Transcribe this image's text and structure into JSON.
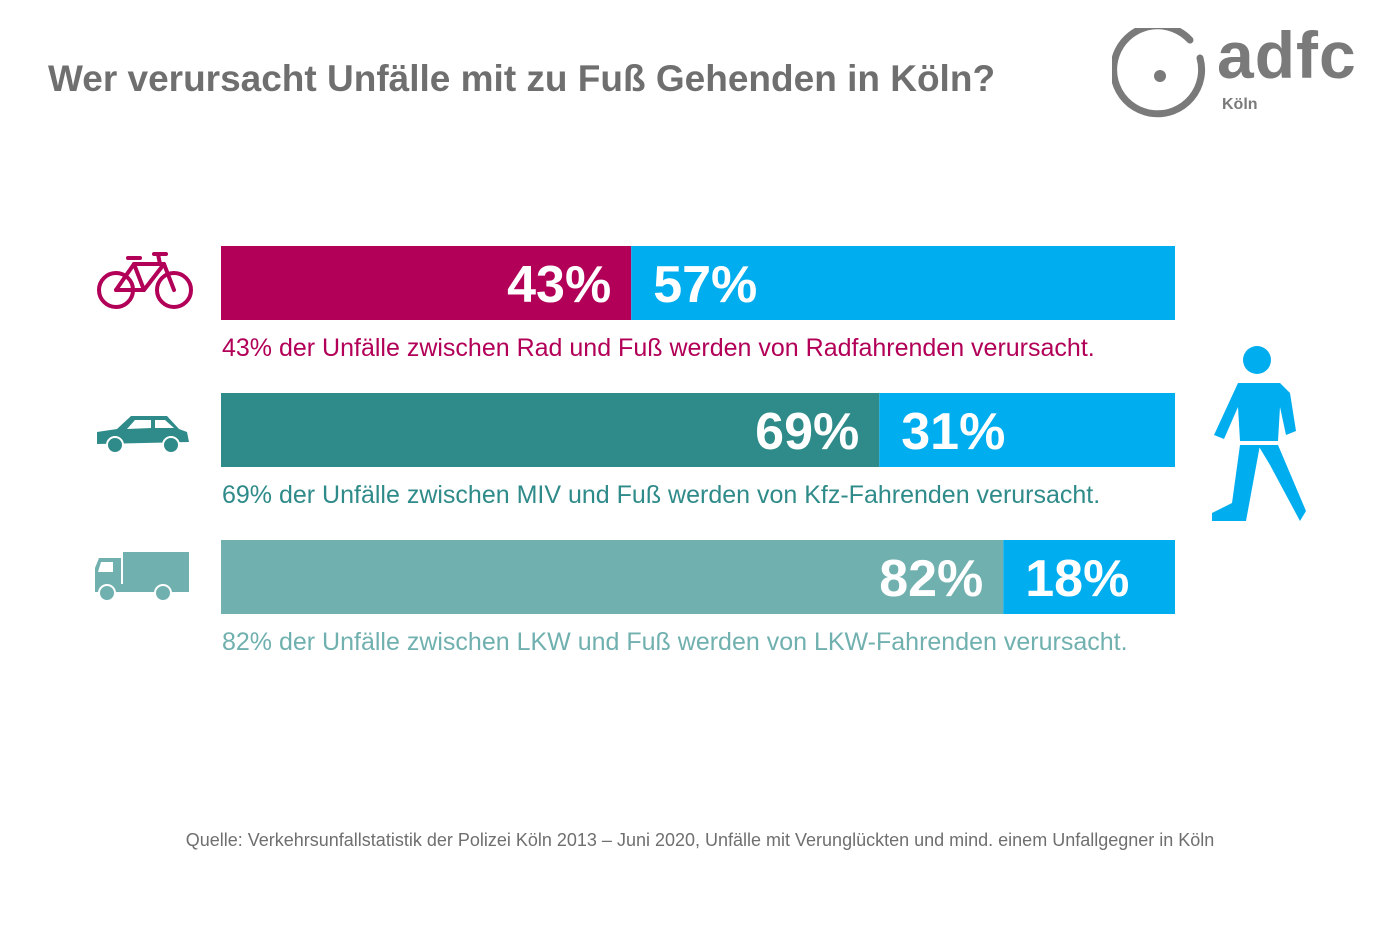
{
  "title": "Wer verursacht Unfälle mit zu Fuß Gehenden in Köln?",
  "logo": {
    "word": "adfc",
    "sub": "Köln"
  },
  "colors": {
    "pedestrian": "#00adef",
    "bicycle": "#b20058",
    "car": "#2f8b8a",
    "truck": "#70b0af",
    "text_gray": "#6f6f6f"
  },
  "chart_data": {
    "type": "bar",
    "orientation": "horizontal",
    "stacked": true,
    "categories": [
      "Rad",
      "MIV",
      "LKW"
    ],
    "series": [
      {
        "values": [
          43,
          69,
          82
        ]
      },
      {
        "values": [
          57,
          31,
          18
        ]
      }
    ],
    "value_labels": [
      [
        "43%",
        "57%"
      ],
      [
        "69%",
        "31%"
      ],
      [
        "82%",
        "18%"
      ]
    ],
    "captions": [
      "43% der Unfälle zwischen Rad und Fuß werden von Radfahrenden verursacht.",
      "69% der Unfälle zwischen MIV und Fuß werden von Kfz-Fahrenden verursacht.",
      "82% der Unfälle zwischen LKW und Fuß werden von LKW-Fahrenden verursacht."
    ],
    "icons": [
      "bicycle-icon",
      "car-icon",
      "truck-icon"
    ],
    "legend_icon": "pedestrian-icon",
    "xlim": [
      0,
      100
    ]
  },
  "source": "Quelle: Verkehrsunfallstatistik der Polizei Köln 2013 – Juni 2020, Unfälle mit Verunglückten und mind. einem Unfallgegner in Köln"
}
